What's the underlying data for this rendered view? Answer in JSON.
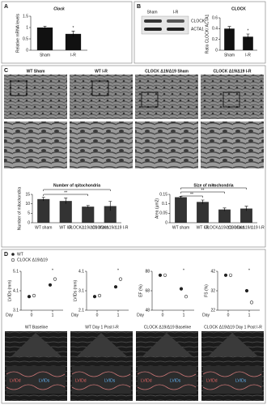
{
  "panel_labels": [
    "A",
    "B",
    "C",
    "D"
  ],
  "blot": {
    "lanes": [
      "Sham",
      "I-R"
    ],
    "bands": [
      "CLOCK",
      "ACTA1"
    ]
  },
  "micrographs": [
    "WT Sham",
    "WT I-R",
    "CLOCK Δ19/Δ19 Sham",
    "CLOCK Δ19/Δ19 I-R"
  ],
  "echo": {
    "captions": [
      "WT Baseline",
      "WT Day 1 Post I-R",
      "CLOCK Δ19/Δ19 Baseline",
      "CLOCK Δ19/Δ19 Day 1 Post I-R"
    ],
    "labels": [
      "LVIDd",
      "LVIDs"
    ]
  },
  "chart_data": [
    {
      "type": "bar",
      "title": "Clock",
      "ylabel": "Relative mRNA levels",
      "categories": [
        "Sham",
        "I-R"
      ],
      "values": [
        1.0,
        0.72
      ],
      "errors": [
        0.05,
        0.12
      ],
      "color": "#111111",
      "ylim": [
        0,
        1.5
      ],
      "yticks": [
        0,
        0.5,
        1,
        1.5
      ],
      "annotations": [
        "*"
      ]
    },
    {
      "type": "bar",
      "title": "CLOCK",
      "ylabel": "Ratio CLOCK/ ACTA1",
      "categories": [
        "Sham",
        "I-R"
      ],
      "values": [
        0.4,
        0.25
      ],
      "errors": [
        0.04,
        0.05
      ],
      "color": "#111111",
      "ylim": [
        0,
        0.6
      ],
      "yticks": [
        0,
        0.2,
        0.4,
        0.6
      ],
      "annotations": [
        "*"
      ]
    },
    {
      "type": "bar",
      "title": "Number of mitochondria",
      "ylabel": "Number of mitochondria",
      "categories": [
        "WT sham",
        "WT I-R",
        "CLOCKΔ19/Δ19 sham",
        "CLOCKΔ19/Δ19 I-R"
      ],
      "values": [
        12.5,
        11.5,
        8.5,
        8.8
      ],
      "errors": [
        1,
        1.5,
        0.6,
        2.5
      ],
      "color": "#333333",
      "ylim": [
        0,
        15
      ],
      "yticks": [
        0,
        5,
        10,
        15
      ],
      "annotations": [
        "**",
        "*"
      ]
    },
    {
      "type": "bar",
      "title": "Size of mitochondria",
      "ylabel": "Area (µm2)",
      "categories": [
        "WT sham",
        "WT I-R",
        "CLOCKΔ19/Δ19 sham",
        "CLOCKΔ19/Δ19 I-R"
      ],
      "values": [
        0.135,
        0.11,
        0.07,
        0.075
      ],
      "errors": [
        0.005,
        0.01,
        0.008,
        0.012
      ],
      "color": "#333333",
      "ylim": [
        0,
        0.15
      ],
      "yticks": [
        0,
        0.05,
        0.1,
        0.15
      ],
      "annotations": [
        "**",
        "**",
        "**"
      ]
    },
    {
      "type": "scatter",
      "ylabel": "LVIDs (mm)",
      "xlabel": "Day",
      "x": [
        0,
        1
      ],
      "xlim": [
        -0.5,
        1.5
      ],
      "xticks": [
        0,
        1
      ],
      "ylim": [
        3.1,
        5.1
      ],
      "yticks": [
        3.1,
        4.1,
        5.1
      ],
      "annotations": [
        "*"
      ],
      "series": [
        {
          "name": "WT",
          "color": "#222222",
          "marker": "filled",
          "values": [
            3.8,
            4.4
          ]
        },
        {
          "name": "CLOCK Δ19/Δ19",
          "color": "#222222",
          "marker": "open",
          "values": [
            3.85,
            4.7
          ]
        }
      ]
    },
    {
      "type": "scatter",
      "ylabel": "LVIDs (mm)",
      "xlabel": "Day",
      "x": [
        0,
        1
      ],
      "xlim": [
        -0.5,
        1.5
      ],
      "xticks": [
        0,
        1
      ],
      "ylim": [
        2.1,
        4.1
      ],
      "yticks": [
        2.1,
        3.1,
        4.1
      ],
      "annotations": [
        "*"
      ],
      "series": [
        {
          "color": "#222222",
          "marker": "filled",
          "values": [
            2.8,
            3.3
          ]
        },
        {
          "color": "#222222",
          "marker": "open",
          "values": [
            2.85,
            3.7
          ]
        }
      ]
    },
    {
      "type": "scatter",
      "ylabel": "EF (%)",
      "xlabel": "Day",
      "x": [
        0,
        1
      ],
      "xlim": [
        -0.5,
        1.5
      ],
      "xticks": [
        0,
        1
      ],
      "ylim": [
        48,
        88
      ],
      "yticks": [
        48,
        68,
        88
      ],
      "annotations": [
        "*"
      ],
      "series": [
        {
          "color": "#222222",
          "marker": "filled",
          "values": [
            84,
            70
          ]
        },
        {
          "color": "#222222",
          "marker": "open",
          "values": [
            84,
            62
          ]
        }
      ]
    },
    {
      "type": "scatter",
      "ylabel": "FS (%)",
      "xlabel": "Day",
      "x": [
        0,
        1
      ],
      "xlim": [
        -0.5,
        1.5
      ],
      "xticks": [
        0,
        1
      ],
      "ylim": [
        22,
        42
      ],
      "yticks": [
        22,
        32,
        42
      ],
      "annotations": [
        "*"
      ],
      "series": [
        {
          "color": "#222222",
          "marker": "filled",
          "values": [
            40,
            32
          ]
        },
        {
          "color": "#222222",
          "marker": "open",
          "values": [
            40,
            26
          ]
        }
      ]
    }
  ]
}
